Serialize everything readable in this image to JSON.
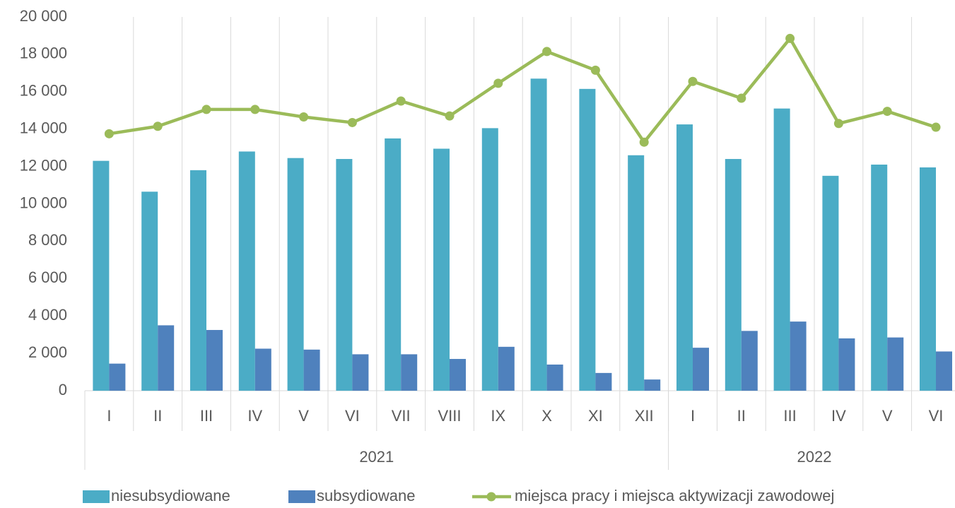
{
  "chart_data": {
    "type": "bar_line",
    "categories": [
      "I",
      "II",
      "III",
      "IV",
      "V",
      "VI",
      "VII",
      "VIII",
      "IX",
      "X",
      "XI",
      "XII",
      "I",
      "II",
      "III",
      "IV",
      "V",
      "VI"
    ],
    "groups": [
      {
        "name": "2021",
        "count": 12
      },
      {
        "name": "2022",
        "count": 6
      }
    ],
    "series": [
      {
        "name": "niesubsydiowane",
        "color": "#4BACC6",
        "kind": "bar",
        "values": [
          12300,
          10650,
          11800,
          12800,
          12450,
          12400,
          13500,
          12950,
          14050,
          16700,
          16150,
          12600,
          14250,
          12400,
          15100,
          11500,
          12100,
          11950
        ]
      },
      {
        "name": "subsydiowane",
        "color": "#4F81BD",
        "kind": "bar",
        "values": [
          1450,
          3500,
          3250,
          2250,
          2200,
          1950,
          1950,
          1700,
          2350,
          1400,
          950,
          600,
          2300,
          3200,
          3700,
          2800,
          2850,
          2100
        ]
      },
      {
        "name": "miejsca pracy i miejsca aktywizacji zawodowej",
        "color": "#9BBB59",
        "kind": "line",
        "values": [
          13750,
          14150,
          15050,
          15050,
          14650,
          14350,
          15500,
          14700,
          16450,
          18150,
          17150,
          13300,
          16550,
          15650,
          18850,
          14300,
          14950,
          14100
        ]
      }
    ],
    "ylim": [
      0,
      20000
    ],
    "yticks": [
      0,
      {
        "value": 2000,
        "label": "2 000"
      },
      {
        "value": 4000,
        "label": "4 000"
      },
      {
        "value": 6000,
        "label": "6 000"
      },
      {
        "value": 8000,
        "label": "8 000"
      },
      {
        "value": 10000,
        "label": "10 000"
      },
      {
        "value": 12000,
        "label": "12 000"
      },
      {
        "value": 14000,
        "label": "14 000"
      },
      {
        "value": 16000,
        "label": "16 000"
      },
      {
        "value": 18000,
        "label": "18 000"
      },
      {
        "value": 20000,
        "label": "20 000"
      }
    ],
    "grid": true,
    "legend": "bottom"
  }
}
